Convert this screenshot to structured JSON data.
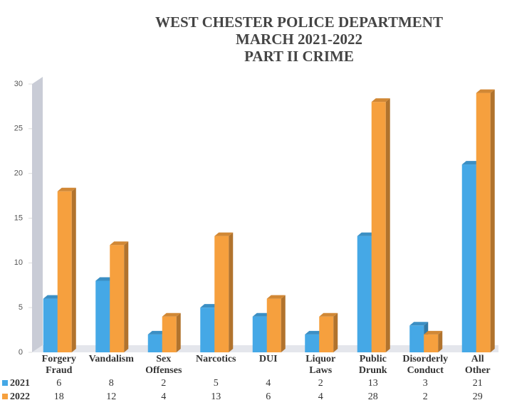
{
  "chart_data": {
    "type": "bar3d",
    "title": [
      "WEST CHESTER POLICE DEPARTMENT",
      "MARCH 2021-2022",
      "PART II CRIME"
    ],
    "categories": [
      "Forgery Fraud",
      "Vandalism",
      "Sex Offenses",
      "Narcotics",
      "DUI",
      "Liquor Laws",
      "Public Drunk",
      "Disorderly Conduct",
      "All Other"
    ],
    "series": [
      {
        "name": "2021",
        "color": "#45a8e6",
        "values": [
          6,
          8,
          2,
          5,
          4,
          2,
          13,
          3,
          21
        ]
      },
      {
        "name": "2022",
        "color": "#f6a03e",
        "values": [
          18,
          12,
          4,
          13,
          6,
          4,
          28,
          2,
          29
        ]
      }
    ],
    "ylim": [
      0,
      30
    ],
    "yticks": [
      0,
      5,
      10,
      15,
      20,
      25,
      30
    ]
  }
}
